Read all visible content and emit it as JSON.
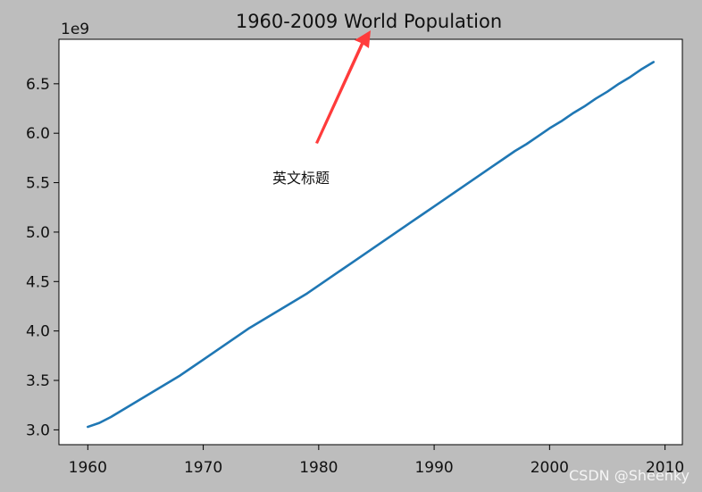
{
  "chart_data": {
    "type": "line",
    "title": "1960-2009 World Population",
    "xlabel": "",
    "ylabel": "",
    "y_offset_label": "1e9",
    "xlim": [
      1957.5,
      2011.5
    ],
    "ylim": [
      2.85,
      6.95
    ],
    "x_ticks": [
      1960,
      1970,
      1980,
      1990,
      2000,
      2010
    ],
    "x_tick_labels": [
      "1960",
      "1970",
      "1980",
      "1990",
      "2000",
      "2010"
    ],
    "y_ticks": [
      3.0,
      3.5,
      4.0,
      4.5,
      5.0,
      5.5,
      6.0,
      6.5
    ],
    "y_tick_labels": [
      "3.0",
      "3.5",
      "4.0",
      "4.5",
      "5.0",
      "5.5",
      "6.0",
      "6.5"
    ],
    "grid": false,
    "series": [
      {
        "color": "#1f77b4",
        "x": [
          1960,
          1961,
          1962,
          1963,
          1964,
          1965,
          1966,
          1967,
          1968,
          1969,
          1970,
          1971,
          1972,
          1973,
          1974,
          1975,
          1976,
          1977,
          1978,
          1979,
          1980,
          1981,
          1982,
          1983,
          1984,
          1985,
          1986,
          1987,
          1988,
          1989,
          1990,
          1991,
          1992,
          1993,
          1994,
          1995,
          1996,
          1997,
          1998,
          1999,
          2000,
          2001,
          2002,
          2003,
          2004,
          2005,
          2006,
          2007,
          2008,
          2009
        ],
        "y": [
          3.03,
          3.07,
          3.13,
          3.2,
          3.27,
          3.34,
          3.41,
          3.48,
          3.55,
          3.63,
          3.71,
          3.79,
          3.87,
          3.95,
          4.03,
          4.1,
          4.17,
          4.24,
          4.31,
          4.38,
          4.46,
          4.54,
          4.62,
          4.7,
          4.78,
          4.86,
          4.94,
          5.02,
          5.1,
          5.18,
          5.26,
          5.34,
          5.42,
          5.5,
          5.58,
          5.66,
          5.74,
          5.82,
          5.89,
          5.97,
          6.05,
          6.12,
          6.2,
          6.27,
          6.35,
          6.42,
          6.5,
          6.57,
          6.65,
          6.72
        ]
      }
    ],
    "annotation": {
      "text": "英文标题",
      "arrow_color": "#ff3b3b"
    }
  },
  "watermark": "CSDN @Sheenky"
}
